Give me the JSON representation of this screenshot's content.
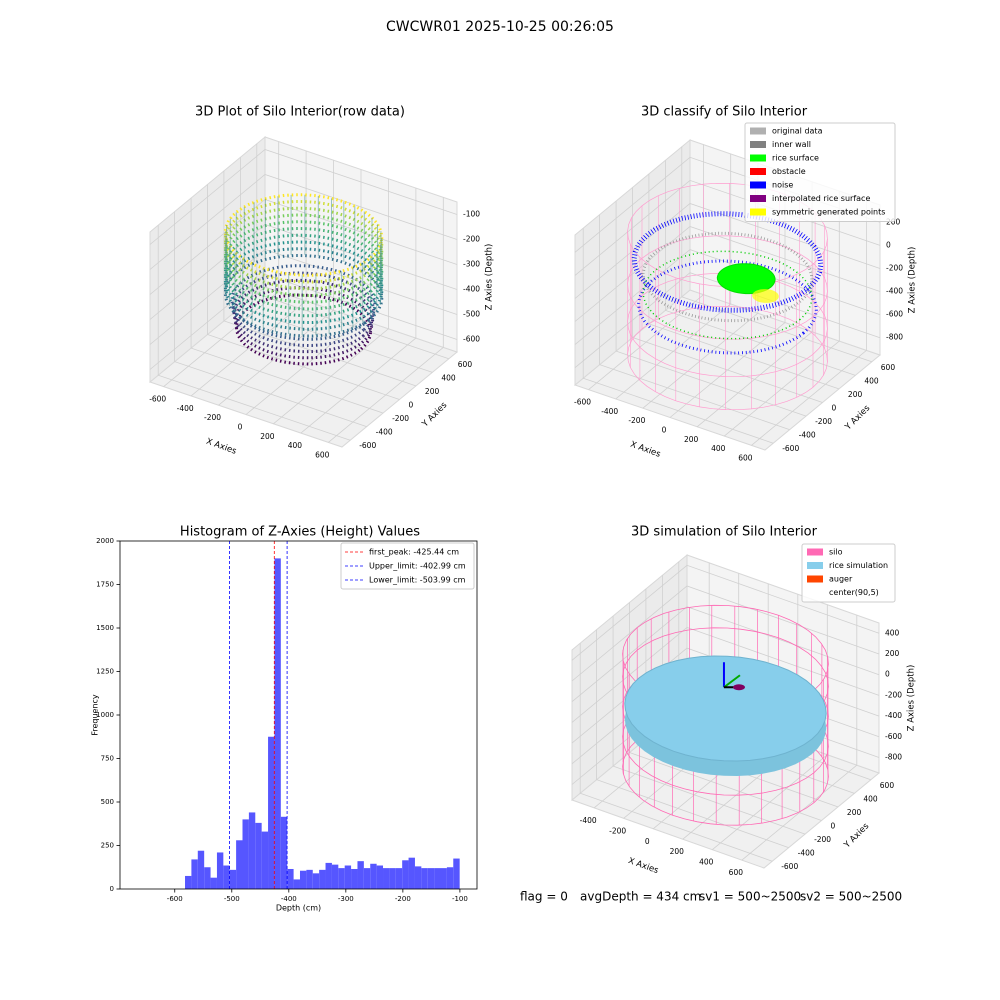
{
  "title": "CWCWR01 2025-10-25 00:26:05",
  "chart_data": [
    {
      "type": "scatter3d",
      "title": "3D Plot of Silo Interior(row data)",
      "xlabel": "X Axies",
      "ylabel": "Y Axies",
      "zlabel": "Z Axies (Depth)",
      "xlim": [
        -700,
        700
      ],
      "ylim": [
        -700,
        700
      ],
      "zlim": [
        -650,
        -50
      ],
      "xticks": [
        -600,
        -400,
        -200,
        0,
        200,
        400,
        600
      ],
      "yticks": [
        -600,
        -400,
        -200,
        0,
        200,
        400,
        600
      ],
      "zticks": [
        -600,
        -500,
        -400,
        -300,
        -200,
        -100
      ]
    },
    {
      "type": "scatter3d",
      "title": "3D classify of Silo Interior",
      "xlabel": "X Axies",
      "ylabel": "Y Axies",
      "zlabel": "Z Axies (Depth)",
      "xlim": [
        -700,
        700
      ],
      "ylim": [
        -700,
        700
      ],
      "zlim": [
        -950,
        350
      ],
      "xticks": [
        -600,
        -400,
        -200,
        0,
        200,
        400,
        600
      ],
      "yticks": [
        -600,
        -400,
        -200,
        0,
        200,
        400,
        600
      ],
      "zticks": [
        -800,
        -600,
        -400,
        -200,
        0,
        200
      ],
      "legend": [
        {
          "name": "original data",
          "color": "#b0b0b0"
        },
        {
          "name": "inner wall",
          "color": "#808080"
        },
        {
          "name": "rice surface",
          "color": "#00ff00"
        },
        {
          "name": "obstacle",
          "color": "#ff0000"
        },
        {
          "name": "noise",
          "color": "#0000ff"
        },
        {
          "name": "interpolated rice surface",
          "color": "#800080"
        },
        {
          "name": "symmetric generated points",
          "color": "#ffff00"
        }
      ]
    },
    {
      "type": "histogram",
      "title": "Histogram of Z-Axies (Height) Values",
      "xlabel": "Depth (cm)",
      "ylabel": "Frequency",
      "color": "#4d4dff",
      "bins": [
        -582,
        -570.8,
        -559.6,
        -548.4,
        -537.2,
        -526,
        -514.8,
        -503.6,
        -492.4,
        -481.2,
        -470,
        -458.8,
        -447.6,
        -436.4,
        -425.2,
        -414,
        -402.8,
        -391.6,
        -380.4,
        -369.2,
        -358,
        -346.8,
        -335.6,
        -324.4,
        -313.2,
        -302,
        -290.8,
        -279.6,
        -268.4,
        -257.2,
        -246,
        -234.8,
        -223.6,
        -212.4,
        -201.2,
        -190,
        -178.8,
        -167.6,
        -156.4,
        -145.2,
        -134,
        -122.8,
        -111.6,
        -100.4
      ],
      "values": [
        75,
        170,
        220,
        125,
        65,
        210,
        135,
        110,
        280,
        400,
        440,
        380,
        330,
        875,
        1900,
        415,
        115,
        55,
        105,
        110,
        90,
        110,
        150,
        140,
        120,
        135,
        115,
        160,
        120,
        145,
        135,
        120,
        120,
        120,
        165,
        180,
        130,
        120,
        120,
        120,
        120,
        125,
        175
      ],
      "xlim": [
        -696,
        -70
      ],
      "ylim": [
        0,
        2000
      ],
      "xticks": [
        -600,
        -500,
        -400,
        -300,
        -200,
        -100
      ],
      "yticks": [
        0,
        250,
        500,
        750,
        1000,
        1250,
        1500,
        1750,
        2000
      ],
      "vlines": [
        {
          "name": "first_peak: -425.44 cm",
          "value": -425.44,
          "color": "#ff0000"
        },
        {
          "name": "Upper_limit: -402.99 cm",
          "value": -402.99,
          "color": "#0000ff"
        },
        {
          "name": "Lower_limit: -503.99 cm",
          "value": -503.99,
          "color": "#0000ff"
        }
      ]
    },
    {
      "type": "scatter3d",
      "title": "3D simulation of Silo Interior",
      "xlabel": "X Axies",
      "ylabel": "Y Axies",
      "zlabel": "Z Axies (Depth)",
      "xlim": [
        -550,
        750
      ],
      "ylim": [
        -700,
        700
      ],
      "zlim": [
        -950,
        500
      ],
      "xticks": [
        -400,
        -200,
        0,
        200,
        400,
        600
      ],
      "yticks": [
        -600,
        -400,
        -200,
        0,
        200,
        400,
        600
      ],
      "zticks": [
        -800,
        -600,
        -400,
        -200,
        0,
        200,
        400
      ],
      "legend": [
        {
          "name": "silo",
          "color": "#ff69b4"
        },
        {
          "name": "rice simulation",
          "color": "#87ceeb"
        },
        {
          "name": "auger",
          "color": "#ff4500"
        },
        {
          "name": "center(90,5)",
          "color": "#ffffff"
        }
      ]
    }
  ],
  "status": {
    "flag": "flag = 0",
    "avg": "avgDepth = 434 cm",
    "sv1": "sv1 = 500~2500",
    "sv2": "sv2 = 500~2500"
  }
}
